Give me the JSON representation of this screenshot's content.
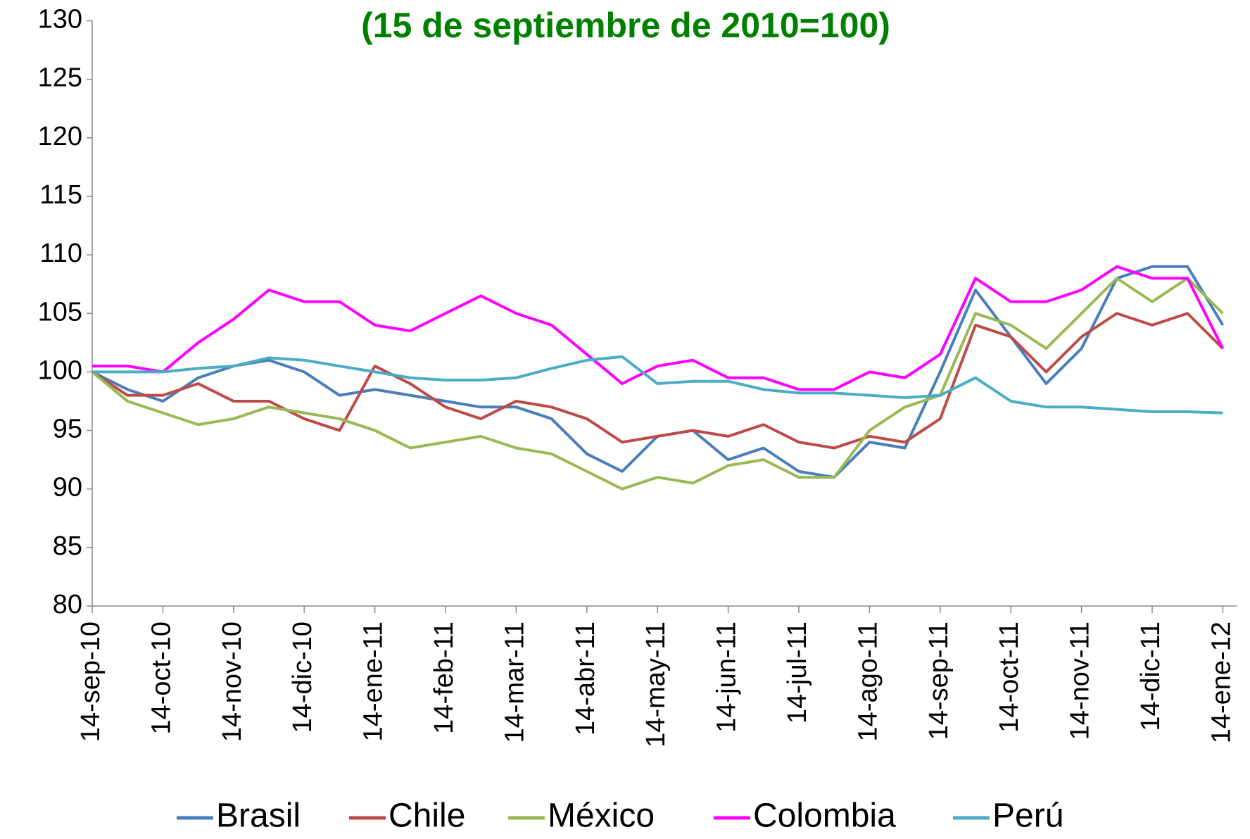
{
  "chart_data": {
    "type": "line",
    "title": "(15 de septiembre de 2010=100)",
    "categories": [
      "14-sep-10",
      null,
      "14-oct-10",
      null,
      "14-nov-10",
      null,
      "14-dic-10",
      null,
      "14-ene-11",
      null,
      "14-feb-11",
      null,
      "14-mar-11",
      null,
      "14-abr-11",
      null,
      "14-may-11",
      null,
      "14-jun-11",
      null,
      "14-jul-11",
      null,
      "14-ago-11",
      null,
      "14-sep-11",
      null,
      "14-oct-11",
      null,
      "14-nov-11",
      null,
      "14-dic-11",
      null,
      "14-ene-12"
    ],
    "series": [
      {
        "name": "Brasil",
        "color": "#4a7ebb",
        "values": [
          100,
          98.5,
          97.5,
          99.5,
          100.5,
          101,
          100,
          98,
          98.5,
          98,
          97.5,
          97,
          97,
          96,
          93,
          91.5,
          94.5,
          95,
          92.5,
          93.5,
          91.5,
          91,
          94,
          93.5,
          100,
          107,
          103,
          99,
          102,
          108,
          109,
          109,
          104
        ]
      },
      {
        "name": "Chile",
        "color": "#be4b48",
        "values": [
          100,
          98,
          98,
          99,
          97.5,
          97.5,
          96,
          95,
          100.5,
          99,
          97,
          96,
          97.5,
          97,
          96,
          94,
          94.5,
          95,
          94.5,
          95.5,
          94,
          93.5,
          94.5,
          94,
          96,
          104,
          103,
          100,
          103,
          105,
          104,
          105,
          102
        ]
      },
      {
        "name": "México",
        "color": "#98b954",
        "values": [
          100,
          97.5,
          96.5,
          95.5,
          96,
          97,
          96.5,
          96,
          95,
          93.5,
          94,
          94.5,
          93.5,
          93,
          91.5,
          90,
          91,
          90.5,
          92,
          92.5,
          91,
          91,
          95,
          97,
          98,
          105,
          104,
          102,
          105,
          108,
          106,
          108,
          105
        ]
      },
      {
        "name": "Colombia",
        "color": "#ff00ff",
        "values": [
          100.5,
          100.5,
          100,
          102.5,
          104.5,
          107,
          106,
          106,
          104,
          103.5,
          105,
          106.5,
          105,
          104,
          101.5,
          99,
          100.5,
          101,
          99.5,
          99.5,
          98.5,
          98.5,
          100,
          99.5,
          101.5,
          108,
          106,
          106,
          107,
          109,
          108,
          108,
          102
        ]
      },
      {
        "name": "Perú",
        "color": "#4bacc6",
        "values": [
          100,
          100,
          100,
          100.3,
          100.5,
          101.2,
          101,
          100.5,
          100,
          99.5,
          99.3,
          99.3,
          99.5,
          100.3,
          101,
          101.3,
          99,
          99.2,
          99.2,
          98.5,
          98.2,
          98.2,
          98,
          97.8,
          98,
          99.5,
          97.5,
          97,
          97,
          96.8,
          96.6,
          96.6,
          96.5
        ]
      }
    ],
    "ylim": [
      80,
      130
    ],
    "yticks": [
      80,
      85,
      90,
      95,
      100,
      105,
      110,
      115,
      120,
      125,
      130
    ],
    "grid": false
  }
}
